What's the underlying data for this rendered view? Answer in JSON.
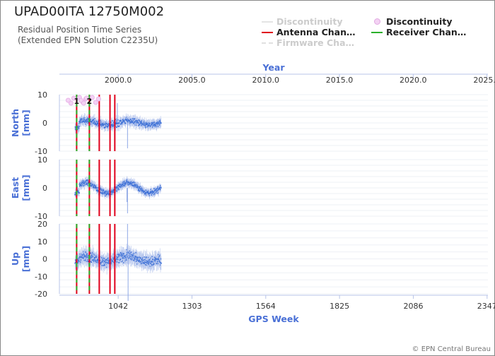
{
  "title": "UPAD00ITA 12750M002",
  "subtitle_line1": "Residual Position Time Series",
  "subtitle_line2": "(Extended EPN Solution C2235U)",
  "copyright": "© EPN Central Bureau",
  "colors": {
    "data": "#3b6fd6",
    "antenna": "#e0001b",
    "receiver": "#2bb02b",
    "discontinuity_line": "#d8d8d8",
    "discontinuity_marker": "#e9b3e9",
    "axis": "#b8c4e8",
    "axis_title": "#4a70d6"
  },
  "legend": [
    {
      "id": "disc_line",
      "label": "Discontinuity",
      "style": "line",
      "color": "#d8d8d8",
      "dimmed": true
    },
    {
      "id": "disc_marker",
      "label": "Discontinuity",
      "style": "marker",
      "color": "#e9b3e9",
      "dimmed": false
    },
    {
      "id": "antenna",
      "label": "Antenna Chan…",
      "style": "line",
      "color": "#e0001b",
      "dimmed": false
    },
    {
      "id": "receiver",
      "label": "Receiver Chan…",
      "style": "line",
      "color": "#2bb02b",
      "dimmed": false
    },
    {
      "id": "firmware",
      "label": "Firmware Cha…",
      "style": "dashed",
      "color": "#d8d8d8",
      "dimmed": true
    }
  ],
  "chart_data": {
    "type": "scatter",
    "top_axis": {
      "title": "Year",
      "ticks": [
        "2000.0",
        "2005.0",
        "2010.0",
        "2015.0",
        "2020.0",
        "2025.0"
      ],
      "values": [
        2000,
        2005,
        2010,
        2015,
        2020,
        2025
      ]
    },
    "bottom_axis": {
      "title": "GPS Week",
      "ticks": [
        "1042",
        "1303",
        "1564",
        "1825",
        "2086",
        "2347"
      ],
      "values": [
        1042,
        1303,
        1564,
        1825,
        2086,
        2347
      ]
    },
    "xlim": [
      834,
      2350
    ],
    "data_range": [
      890,
      1194
    ],
    "panels": [
      {
        "name": "North",
        "unit": "[mm]",
        "ylim": [
          -10,
          10
        ],
        "yticks": [
          10,
          0,
          -10
        ],
        "noise": 1.3,
        "wave": 0.8,
        "spikes": [
          [
            1039,
            7
          ],
          [
            1075,
            -9
          ]
        ]
      },
      {
        "name": "East",
        "unit": "[mm]",
        "ylim": [
          -10,
          10
        ],
        "yticks": [
          10,
          0,
          -10
        ],
        "noise": 1.1,
        "wave": 1.8,
        "spikes": [
          [
            1073,
            -5
          ],
          [
            1075,
            -9
          ]
        ]
      },
      {
        "name": "Up",
        "unit": "[mm]",
        "ylim": [
          -20,
          20
        ],
        "yticks": [
          20,
          10,
          0,
          -10,
          -20
        ],
        "noise": 3.2,
        "wave": 1.5,
        "spikes": [
          [
            1075,
            20
          ],
          [
            1077,
            -24
          ]
        ]
      }
    ],
    "events": {
      "receiver_changes": [
        895,
        940
      ],
      "antenna_changes": [
        895,
        940,
        975,
        1013,
        1030
      ],
      "discontinuity_markers": [
        {
          "week": 895,
          "label": "1"
        },
        {
          "week": 940,
          "label": "2"
        }
      ]
    }
  }
}
